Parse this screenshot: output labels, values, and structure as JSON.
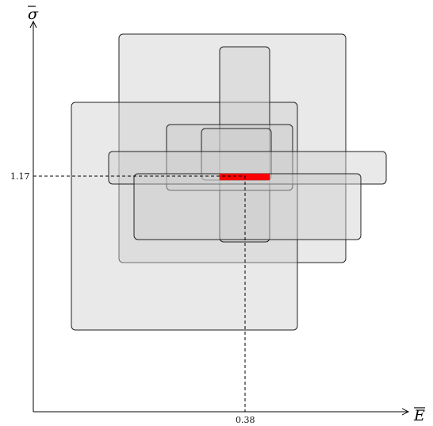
{
  "axes": {
    "x_label": "E",
    "y_label": "σ",
    "x_tick": "0.38",
    "y_tick": "1.17"
  },
  "colors": {
    "box_fill": "#cfcfcf",
    "box_stroke": "#222222",
    "highlight": "#ff0000"
  },
  "boxes": [
    {
      "name": "box-1"
    },
    {
      "name": "box-2"
    },
    {
      "name": "box-3"
    },
    {
      "name": "box-4"
    },
    {
      "name": "box-5"
    },
    {
      "name": "box-6"
    },
    {
      "name": "box-7"
    }
  ]
}
